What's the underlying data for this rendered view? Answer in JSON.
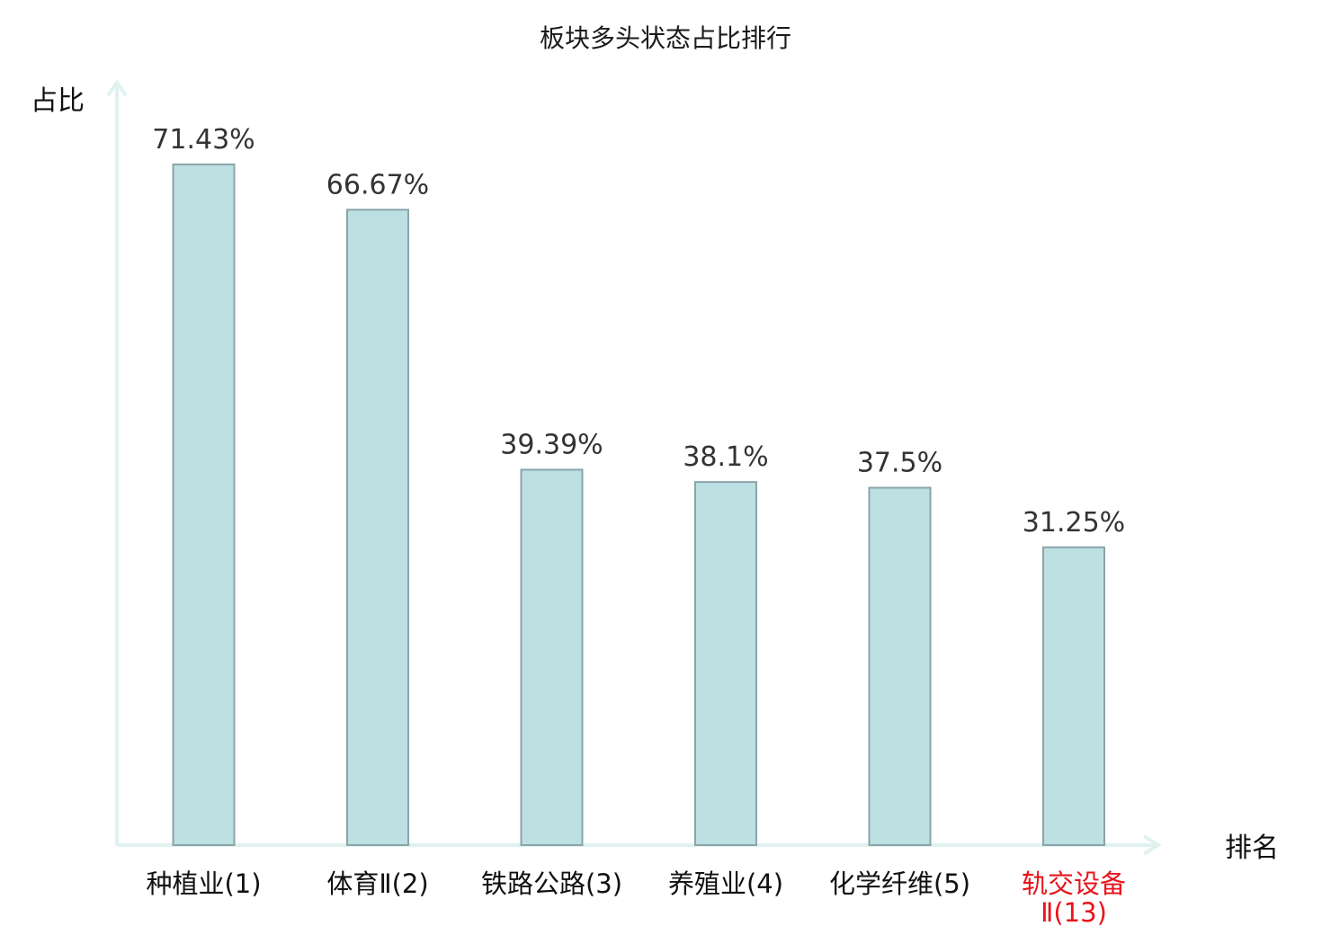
{
  "chart_data": {
    "type": "bar",
    "title": "板块多头状态占比排行",
    "ylabel": "占比",
    "xlabel": "排名",
    "ylim": [
      0,
      80
    ],
    "unit": "%",
    "grid": false,
    "categories": [
      {
        "name": "种植业",
        "rank": "(1)",
        "highlight": false
      },
      {
        "name": "体育Ⅱ",
        "rank": "(2)",
        "highlight": false
      },
      {
        "name": "铁路公路",
        "rank": "(3)",
        "highlight": false
      },
      {
        "name": "养殖业",
        "rank": "(4)",
        "highlight": false
      },
      {
        "name": "化学纤维",
        "rank": "(5)",
        "highlight": false
      },
      {
        "name": "轨交设备",
        "rank": "Ⅱ(13)",
        "highlight": true
      }
    ],
    "values": [
      71.43,
      66.67,
      39.39,
      38.1,
      37.5,
      31.25
    ],
    "value_labels": [
      "71.43%",
      "66.67%",
      "39.39%",
      "38.1%",
      "37.5%",
      "31.25%"
    ]
  },
  "colors": {
    "bar_fill": "#bde0e3",
    "bar_stroke": "#8aa4a8",
    "axis": "#dff2ef",
    "highlight_label": "#e8141b"
  }
}
